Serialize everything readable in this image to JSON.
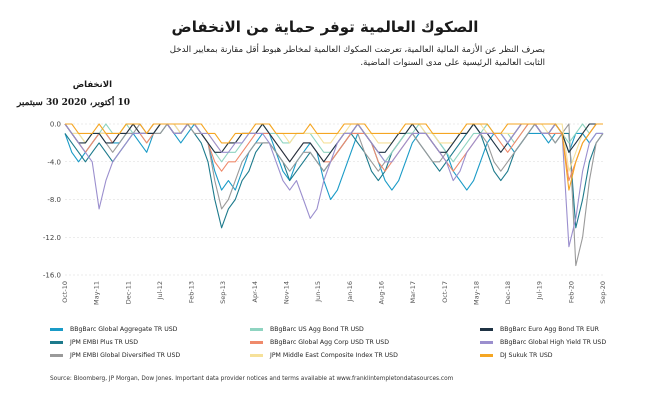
{
  "title": "الصكوك العالمية توفر حماية من الانخفاض",
  "subtitle": "بصرف النظر عن الأزمة المالية العالمية، تعرضت الصكوك العالمية لمخاطر هبوط أقل مقارنة بمعايير الدخل الثابت العالمية الرئيسية على مدى السنوات الماضية.",
  "y_axis_label": "الانخفاض",
  "date_label": "10 أكتوبر، 2020 30 سبتمبر",
  "source": "Source: Bloomberg, JP Morgan, Dow Jones. Important data provider notices and terms available at www.franklintempletondatasources.com",
  "chart_data": {
    "type": "line",
    "ylim": [
      -16,
      0
    ],
    "yticks": [
      0.0,
      -4.0,
      -8.0,
      -12.0,
      -16.0
    ],
    "ytick_labels": [
      "0.0",
      "-4.0",
      "-8.0",
      "-12.0",
      "-16.0"
    ],
    "x_tick_labels": [
      "Oct-10",
      "May-11",
      "Dec-11",
      "Jul-12",
      "Feb-13",
      "Sep-13",
      "Apr-14",
      "Nov-14",
      "Jun-15",
      "Jan-16",
      "Aug-16",
      "Mar-17",
      "Oct-17",
      "May-18",
      "Dec-18",
      "Jul-19",
      "Feb-20",
      "Sep-20"
    ],
    "grid": true,
    "legend_position": "bottom",
    "series": [
      {
        "name": "BBgBarc Global Aggregate TR USD",
        "color": "#1a9bc7",
        "values": [
          -1,
          -3,
          -4,
          -3,
          -2,
          -1,
          -1,
          -2,
          -2,
          -1,
          -1,
          -2,
          -3,
          -1,
          0,
          0,
          -1,
          -2,
          -1,
          0,
          -1,
          -2,
          -5,
          -7,
          -6,
          -7,
          -5,
          -3,
          -2,
          -1,
          -1,
          -3,
          -5,
          -6,
          -4,
          -3,
          -2,
          -3,
          -6,
          -8,
          -7,
          -5,
          -3,
          -1,
          -1,
          -2,
          -4,
          -6,
          -7,
          -6,
          -4,
          -2,
          -1,
          -1,
          -1,
          -2,
          -3,
          -5,
          -6,
          -7,
          -6,
          -4,
          -2,
          -1,
          -1,
          -2,
          -3,
          -2,
          -1,
          -1,
          -1,
          -2,
          -1,
          -1,
          -3,
          -1,
          -1,
          -2,
          -1,
          -1
        ]
      },
      {
        "name": "JPM EMBI Plus TR USD",
        "color": "#1d7a8c",
        "values": [
          -1,
          -2,
          -3,
          -4,
          -3,
          -2,
          -3,
          -4,
          -3,
          -2,
          -1,
          -1,
          -1,
          -1,
          -1,
          0,
          -1,
          -1,
          0,
          -1,
          -2,
          -4,
          -8,
          -11,
          -9,
          -8,
          -6,
          -5,
          -3,
          -2,
          -2,
          -3,
          -4,
          -6,
          -5,
          -4,
          -3,
          -4,
          -5,
          -4,
          -3,
          -2,
          -1,
          -2,
          -3,
          -5,
          -6,
          -5,
          -3,
          -2,
          -1,
          -1,
          -2,
          -3,
          -4,
          -5,
          -4,
          -3,
          -2,
          -1,
          0,
          -1,
          -3,
          -5,
          -6,
          -5,
          -3,
          -2,
          -1,
          0,
          -1,
          -1,
          -2,
          -1,
          -1,
          -11,
          -8,
          -4,
          -2,
          -1
        ]
      },
      {
        "name": "JPM EMBI Global Diversified TR USD",
        "color": "#9a9a9a",
        "values": [
          0,
          -1,
          -2,
          -3,
          -2,
          -1,
          -2,
          -3,
          -2,
          -1,
          -1,
          0,
          -1,
          -1,
          -1,
          0,
          0,
          -1,
          0,
          -1,
          -1,
          -2,
          -6,
          -9,
          -8,
          -6,
          -4,
          -3,
          -2,
          -2,
          -2,
          -3,
          -4,
          -5,
          -4,
          -3,
          -3,
          -4,
          -5,
          -4,
          -3,
          -2,
          -1,
          -1,
          -3,
          -4,
          -5,
          -4,
          -3,
          -2,
          -1,
          -1,
          -2,
          -3,
          -4,
          -4,
          -3,
          -2,
          -1,
          -1,
          0,
          -1,
          -2,
          -4,
          -5,
          -4,
          -3,
          -2,
          -1,
          0,
          -1,
          -1,
          -2,
          -1,
          0,
          -15,
          -12,
          -6,
          -2,
          -1
        ]
      },
      {
        "name": "BBgBarc US Agg Bond TR USD",
        "color": "#8fd4c1",
        "values": [
          0,
          -1,
          -1,
          -2,
          -1,
          -1,
          0,
          -1,
          -1,
          0,
          -1,
          -1,
          -2,
          -1,
          0,
          0,
          -1,
          -1,
          0,
          0,
          -1,
          -2,
          -3,
          -4,
          -3,
          -3,
          -2,
          -1,
          -1,
          0,
          -1,
          -1,
          -2,
          -2,
          -1,
          -1,
          -1,
          -2,
          -3,
          -3,
          -2,
          -1,
          -1,
          0,
          -1,
          -2,
          -3,
          -4,
          -3,
          -2,
          -1,
          -1,
          0,
          -1,
          -1,
          -2,
          -3,
          -4,
          -3,
          -2,
          -1,
          -1,
          0,
          -1,
          -1,
          -1,
          -2,
          -1,
          0,
          0,
          -1,
          -1,
          0,
          -1,
          -2,
          -1,
          0,
          -1,
          0,
          0
        ]
      },
      {
        "name": "BBgBarc Global Agg Corp USD TR USD",
        "color": "#ef8a6b",
        "values": [
          0,
          -1,
          -2,
          -3,
          -2,
          -1,
          -1,
          -2,
          -1,
          -1,
          0,
          -1,
          -2,
          -1,
          0,
          0,
          -1,
          -1,
          0,
          0,
          -1,
          -2,
          -4,
          -5,
          -4,
          -4,
          -3,
          -2,
          -1,
          -1,
          -1,
          -2,
          -3,
          -4,
          -3,
          -2,
          -2,
          -3,
          -4,
          -4,
          -3,
          -2,
          -1,
          -1,
          -1,
          -2,
          -4,
          -5,
          -4,
          -3,
          -2,
          -1,
          -1,
          -1,
          -2,
          -3,
          -4,
          -5,
          -4,
          -3,
          -2,
          -1,
          -1,
          -1,
          -2,
          -3,
          -2,
          -1,
          0,
          0,
          -1,
          -1,
          -1,
          -1,
          -6,
          -4,
          -2,
          -1,
          0,
          0
        ]
      },
      {
        "name": "JPM Middle East Composite Index TR USD",
        "color": "#f6e19a",
        "values": [
          0,
          -1,
          -1,
          -2,
          -1,
          -1,
          -1,
          -1,
          -1,
          0,
          0,
          -1,
          -1,
          0,
          0,
          0,
          0,
          -1,
          0,
          0,
          -1,
          -1,
          -2,
          -3,
          -2,
          -2,
          -1,
          -1,
          -1,
          0,
          0,
          -1,
          -1,
          -2,
          -1,
          -1,
          -1,
          -1,
          -2,
          -2,
          -1,
          -1,
          0,
          0,
          -1,
          -1,
          -2,
          -2,
          -2,
          -1,
          -1,
          0,
          0,
          -1,
          -1,
          -2,
          -2,
          -2,
          -1,
          -1,
          0,
          0,
          -1,
          -1,
          -1,
          -1,
          -1,
          0,
          0,
          0,
          0,
          -1,
          0,
          0,
          -5,
          -3,
          -1,
          0,
          0,
          0
        ]
      },
      {
        "name": "BBgBarc Euro Agg Bond TR EUR",
        "color": "#1f3344",
        "values": [
          0,
          -1,
          -2,
          -2,
          -1,
          -1,
          -2,
          -2,
          -1,
          -1,
          0,
          -1,
          -1,
          -1,
          0,
          0,
          -1,
          -1,
          0,
          0,
          -1,
          -2,
          -3,
          -3,
          -2,
          -2,
          -1,
          -1,
          -1,
          0,
          -1,
          -2,
          -3,
          -4,
          -3,
          -2,
          -2,
          -3,
          -4,
          -3,
          -2,
          -1,
          -1,
          0,
          -1,
          -2,
          -3,
          -3,
          -2,
          -1,
          -1,
          0,
          -1,
          -1,
          -2,
          -3,
          -3,
          -2,
          -1,
          -1,
          0,
          -1,
          -1,
          -2,
          -3,
          -2,
          -1,
          0,
          0,
          0,
          -1,
          -1,
          0,
          -1,
          -3,
          -2,
          -1,
          0,
          0,
          0
        ]
      },
      {
        "name": "BBgBarc Global High Yield TR USD",
        "color": "#9b8fce",
        "values": [
          0,
          -1,
          -2,
          -3,
          -4,
          -9,
          -6,
          -4,
          -3,
          -2,
          -1,
          -1,
          -1,
          0,
          0,
          0,
          -1,
          -1,
          0,
          0,
          -1,
          -1,
          -2,
          -3,
          -3,
          -2,
          -2,
          -1,
          -1,
          -1,
          -2,
          -4,
          -6,
          -7,
          -6,
          -8,
          -10,
          -9,
          -6,
          -4,
          -2,
          -1,
          -1,
          0,
          -1,
          -2,
          -3,
          -4,
          -4,
          -3,
          -2,
          -1,
          -1,
          -1,
          -2,
          -3,
          -4,
          -6,
          -5,
          -3,
          -2,
          -1,
          -1,
          -1,
          -1,
          -2,
          -1,
          0,
          0,
          0,
          -1,
          -1,
          0,
          -1,
          -13,
          -10,
          -5,
          -2,
          -1,
          -1
        ]
      },
      {
        "name": "DJ Sukuk TR USD",
        "color": "#f5a623",
        "values": [
          0,
          0,
          -1,
          -1,
          -1,
          0,
          -1,
          -1,
          -1,
          0,
          0,
          0,
          -1,
          0,
          0,
          0,
          0,
          0,
          0,
          0,
          0,
          -1,
          -1,
          -2,
          -2,
          -1,
          -1,
          -1,
          0,
          0,
          0,
          -1,
          -1,
          -1,
          -1,
          -1,
          0,
          -1,
          -1,
          -1,
          -1,
          0,
          0,
          0,
          0,
          -1,
          -1,
          -1,
          -1,
          -1,
          0,
          0,
          0,
          0,
          -1,
          -1,
          -1,
          -1,
          -1,
          0,
          0,
          0,
          0,
          -1,
          -1,
          0,
          0,
          0,
          0,
          0,
          0,
          0,
          0,
          -1,
          -7,
          -4,
          -2,
          -1,
          0,
          0
        ]
      }
    ]
  }
}
